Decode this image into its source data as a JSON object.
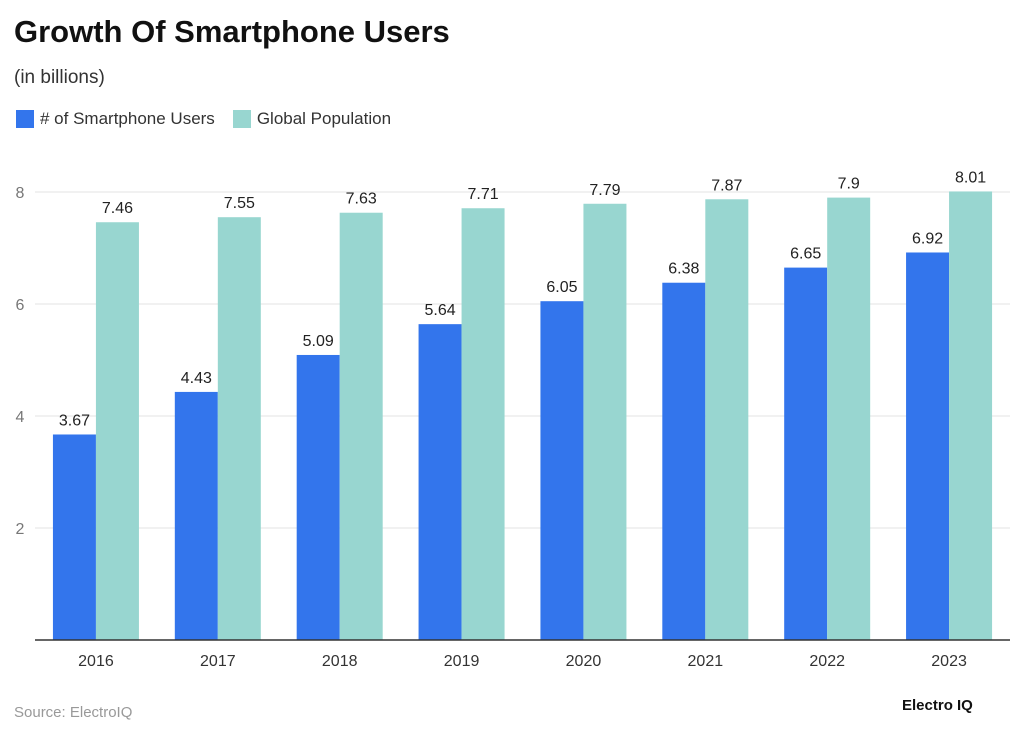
{
  "chart_data": {
    "type": "bar",
    "title": "Growth Of Smartphone Users",
    "subtitle": "(in billions)",
    "categories": [
      "2016",
      "2017",
      "2018",
      "2019",
      "2020",
      "2021",
      "2022",
      "2023"
    ],
    "series": [
      {
        "name": "# of Smartphone Users",
        "color": "#3375ec",
        "values": [
          3.67,
          4.43,
          5.09,
          5.64,
          6.05,
          6.38,
          6.65,
          6.92
        ]
      },
      {
        "name": "Global Population",
        "color": "#98d6d0",
        "values": [
          7.46,
          7.55,
          7.63,
          7.71,
          7.79,
          7.87,
          7.9,
          8.01
        ]
      }
    ],
    "ylim": [
      0,
      8
    ],
    "yticks": [
      2,
      4,
      6,
      8
    ],
    "grid": true,
    "legend": "top-left",
    "xlabel": "",
    "ylabel": ""
  },
  "footer": {
    "source": "Source: ElectroIQ",
    "logo": "Electro IQ"
  }
}
